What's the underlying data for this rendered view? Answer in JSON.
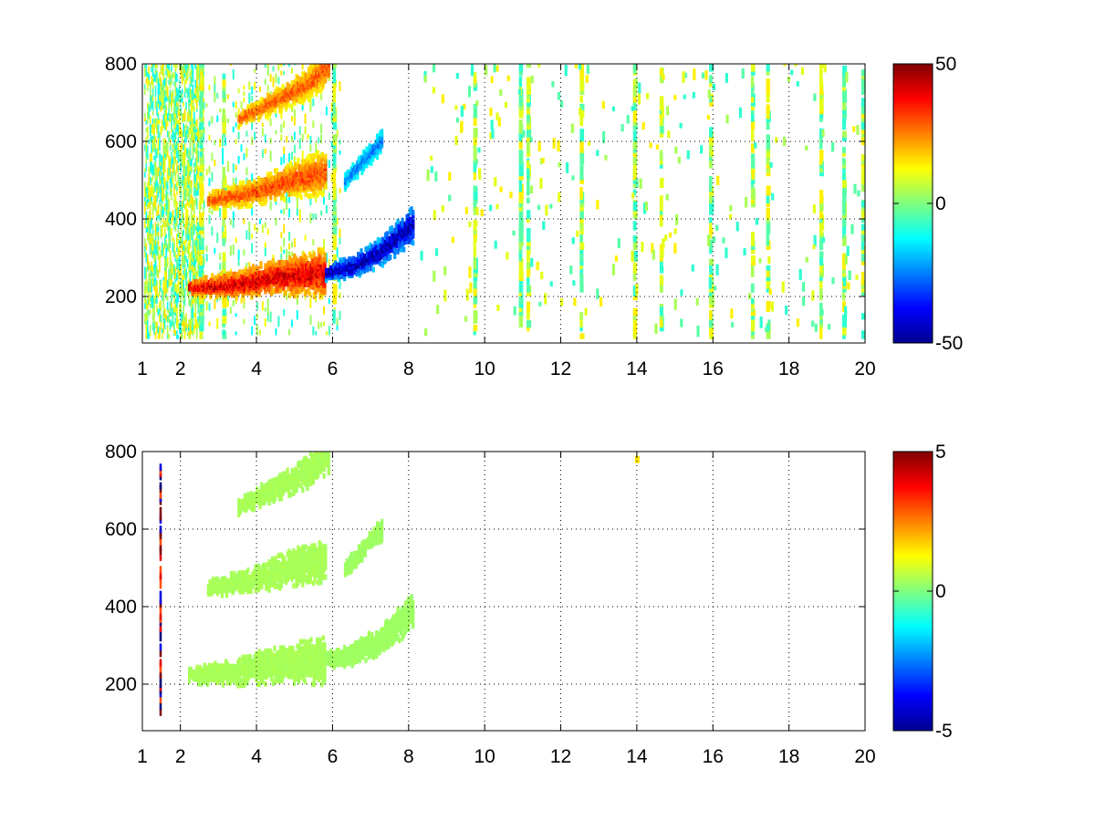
{
  "chart_data": [
    {
      "type": "heatmap",
      "title": "",
      "xlabel": "",
      "ylabel": "",
      "xlim": [
        1,
        20
      ],
      "ylim": [
        80,
        800
      ],
      "x_ticks": [
        "1",
        "2",
        "4",
        "6",
        "8",
        "10",
        "12",
        "14",
        "16",
        "18",
        "20"
      ],
      "y_ticks": [
        "200",
        "400",
        "600",
        "800"
      ],
      "grid": true,
      "colormap": "jet",
      "clim": [
        -50,
        50
      ],
      "colorbar_ticks": [
        "50",
        "0",
        "-50"
      ],
      "background_color": "#ffffff",
      "features": [
        {
          "x": [
            2.2,
            3.5,
            4.6,
            5.8
          ],
          "y": [
            215,
            225,
            245,
            255
          ],
          "value": 40
        },
        {
          "x": [
            5.8,
            6.5,
            7.2,
            8.1
          ],
          "y": [
            255,
            270,
            305,
            380
          ],
          "value": -45
        },
        {
          "x": [
            2.7,
            3.8,
            4.8,
            5.8
          ],
          "y": [
            440,
            460,
            490,
            515
          ],
          "value": 30
        },
        {
          "x": [
            6.3,
            6.8,
            7.3
          ],
          "y": [
            490,
            545,
            600
          ],
          "value": -25
        },
        {
          "x": [
            3.5,
            4.5,
            5.3,
            5.9
          ],
          "y": [
            650,
            700,
            740,
            790
          ],
          "value": 28
        }
      ],
      "noise_columns_x": [
        2.5,
        3.1,
        6.0,
        9.7,
        10.9,
        11.1,
        12.5,
        13.9,
        14.6,
        15.9,
        17.0,
        17.4,
        18.8,
        19.4,
        19.9
      ]
    },
    {
      "type": "heatmap",
      "title": "",
      "xlabel": "",
      "ylabel": "",
      "xlim": [
        1,
        20
      ],
      "ylim": [
        80,
        800
      ],
      "x_ticks": [
        "1",
        "2",
        "4",
        "6",
        "8",
        "10",
        "12",
        "14",
        "16",
        "18",
        "20"
      ],
      "y_ticks": [
        "200",
        "400",
        "600",
        "800"
      ],
      "grid": true,
      "colormap": "jet",
      "clim": [
        -5,
        5
      ],
      "colorbar_ticks": [
        "5",
        "0",
        "-5"
      ],
      "background_color": "#ffffff",
      "features": [
        {
          "x": [
            2.2,
            3.5,
            4.6,
            5.8
          ],
          "y": [
            215,
            225,
            245,
            255
          ],
          "value": 0.4
        },
        {
          "x": [
            5.8,
            6.5,
            7.2,
            8.1
          ],
          "y": [
            255,
            270,
            305,
            380
          ],
          "value": 0.3
        },
        {
          "x": [
            2.7,
            3.8,
            4.8,
            5.8
          ],
          "y": [
            440,
            460,
            490,
            515
          ],
          "value": 0.4
        },
        {
          "x": [
            6.3,
            6.8,
            7.3
          ],
          "y": [
            490,
            545,
            600
          ],
          "value": 0.3
        },
        {
          "x": [
            3.5,
            4.5,
            5.3,
            5.9
          ],
          "y": [
            650,
            700,
            740,
            790
          ],
          "value": 0.4
        }
      ],
      "isolated_points": [
        {
          "x": 14,
          "y": 770,
          "value": 1.5
        }
      ],
      "edge_column_x": 1.45
    }
  ]
}
